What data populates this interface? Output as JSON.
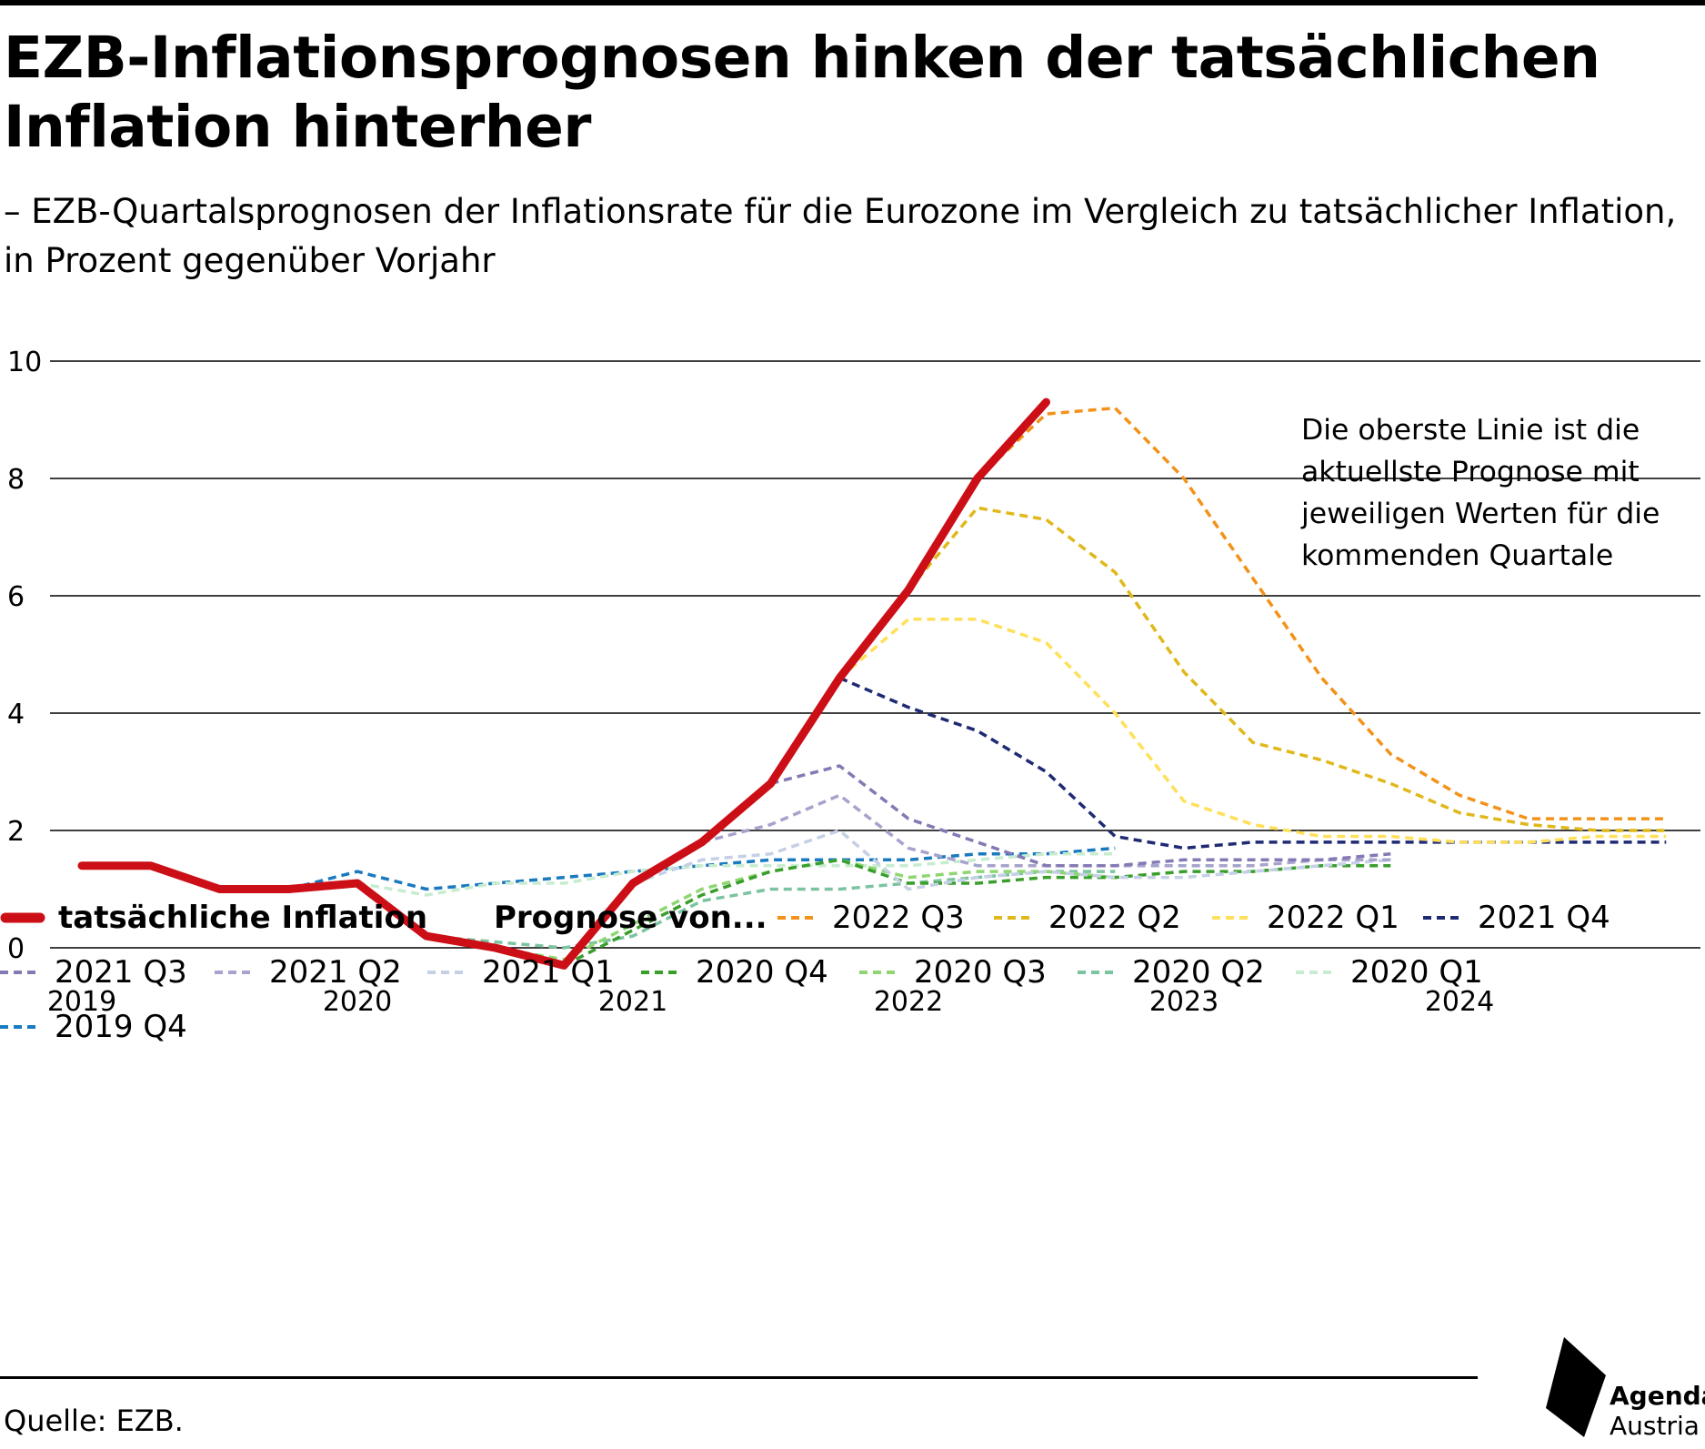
{
  "header": {
    "title": "EZB-Inflationsprognosen hinken der tatsächlichen Inflation hinterher",
    "subtitle": "– EZB-Quartalsprognosen der Inflationsrate für die Eurozone im Vergleich zu tatsächlicher Inflation, in Prozent gegenüber Vorjahr"
  },
  "annotation": {
    "lines": [
      "Die oberste Linie ist die",
      "aktuellste Prognose mit",
      "jeweiligen Werten für die",
      "kommenden Quartale"
    ]
  },
  "footer": {
    "source": "Quelle: EZB.",
    "logo_line1": "Agenda",
    "logo_line2": "Austria"
  },
  "chart_data": {
    "type": "line",
    "title": "EZB-Inflationsprognosen hinken der tatsächlichen Inflation hinterher",
    "xlabel": "",
    "ylabel": "",
    "xlim": [
      2019,
      2024.875
    ],
    "ylim": [
      0,
      10
    ],
    "grid": true,
    "y_ticks": [
      0,
      2,
      4,
      6,
      8,
      10
    ],
    "x_ticks": [
      2019,
      2020,
      2021,
      2022,
      2023,
      2024
    ],
    "x_tick_labels": [
      "2019",
      "2020",
      "2021",
      "2022",
      "2023",
      "2024"
    ],
    "legend_position": "bottom",
    "legend_heading": "Prognose von...",
    "actual": {
      "name": "tatsächliche Inflation",
      "color": "#cc0e16",
      "points": [
        [
          2019.0,
          1.4
        ],
        [
          2019.25,
          1.4
        ],
        [
          2019.5,
          1.0
        ],
        [
          2019.75,
          1.0
        ],
        [
          2020.0,
          1.1
        ],
        [
          2020.25,
          0.2
        ],
        [
          2020.5,
          0.0
        ],
        [
          2020.75,
          -0.3
        ],
        [
          2021.0,
          1.1
        ],
        [
          2021.25,
          1.8
        ],
        [
          2021.5,
          2.8
        ],
        [
          2021.75,
          4.6
        ],
        [
          2022.0,
          6.1
        ],
        [
          2022.25,
          8.0
        ],
        [
          2022.5,
          9.3
        ]
      ]
    },
    "series": [
      {
        "name": "2019 Q4",
        "color": "#1a7abf",
        "points": [
          [
            2019.75,
            1.0
          ],
          [
            2020.0,
            1.3
          ],
          [
            2020.25,
            1.0
          ],
          [
            2020.5,
            1.1
          ],
          [
            2020.75,
            1.2
          ],
          [
            2021.0,
            1.3
          ],
          [
            2021.25,
            1.4
          ],
          [
            2021.5,
            1.5
          ],
          [
            2021.75,
            1.5
          ],
          [
            2022.0,
            1.5
          ],
          [
            2022.25,
            1.6
          ],
          [
            2022.5,
            1.6
          ],
          [
            2022.75,
            1.7
          ]
        ]
      },
      {
        "name": "2020 Q1",
        "color": "#c7ecd0",
        "points": [
          [
            2020.0,
            1.1
          ],
          [
            2020.25,
            0.9
          ],
          [
            2020.5,
            1.1
          ],
          [
            2020.75,
            1.1
          ],
          [
            2021.0,
            1.3
          ],
          [
            2021.25,
            1.4
          ],
          [
            2021.5,
            1.4
          ],
          [
            2021.75,
            1.4
          ],
          [
            2022.0,
            1.4
          ],
          [
            2022.25,
            1.5
          ],
          [
            2022.5,
            1.6
          ],
          [
            2022.75,
            1.6
          ]
        ]
      },
      {
        "name": "2020 Q2",
        "color": "#7cc3a0",
        "points": [
          [
            2020.25,
            0.2
          ],
          [
            2020.5,
            0.1
          ],
          [
            2020.75,
            0.0
          ],
          [
            2021.0,
            0.2
          ],
          [
            2021.25,
            0.8
          ],
          [
            2021.5,
            1.0
          ],
          [
            2021.75,
            1.0
          ],
          [
            2022.0,
            1.1
          ],
          [
            2022.25,
            1.2
          ],
          [
            2022.5,
            1.3
          ],
          [
            2022.75,
            1.3
          ]
        ]
      },
      {
        "name": "2020 Q3",
        "color": "#8fd673",
        "points": [
          [
            2020.5,
            0.0
          ],
          [
            2020.75,
            -0.2
          ],
          [
            2021.0,
            0.4
          ],
          [
            2021.25,
            1.0
          ],
          [
            2021.5,
            1.3
          ],
          [
            2021.75,
            1.5
          ],
          [
            2022.0,
            1.2
          ],
          [
            2022.25,
            1.3
          ],
          [
            2022.5,
            1.3
          ],
          [
            2022.75,
            1.2
          ]
        ]
      },
      {
        "name": "2020 Q4",
        "color": "#3a9e2c",
        "points": [
          [
            2020.75,
            -0.3
          ],
          [
            2021.0,
            0.3
          ],
          [
            2021.25,
            0.9
          ],
          [
            2021.5,
            1.3
          ],
          [
            2021.75,
            1.5
          ],
          [
            2022.0,
            1.1
          ],
          [
            2022.25,
            1.1
          ],
          [
            2022.5,
            1.2
          ],
          [
            2022.75,
            1.2
          ],
          [
            2023.0,
            1.3
          ],
          [
            2023.25,
            1.3
          ],
          [
            2023.5,
            1.4
          ],
          [
            2023.75,
            1.4
          ]
        ]
      },
      {
        "name": "2021 Q1",
        "color": "#c5d0e6",
        "points": [
          [
            2021.0,
            1.1
          ],
          [
            2021.25,
            1.5
          ],
          [
            2021.5,
            1.6
          ],
          [
            2021.75,
            2.0
          ],
          [
            2022.0,
            1.0
          ],
          [
            2022.25,
            1.2
          ],
          [
            2022.5,
            1.3
          ],
          [
            2022.75,
            1.2
          ],
          [
            2023.0,
            1.2
          ],
          [
            2023.25,
            1.3
          ],
          [
            2023.5,
            1.4
          ],
          [
            2023.75,
            1.5
          ]
        ]
      },
      {
        "name": "2021 Q2",
        "color": "#a6a3cc",
        "points": [
          [
            2021.25,
            1.8
          ],
          [
            2021.5,
            2.1
          ],
          [
            2021.75,
            2.6
          ],
          [
            2022.0,
            1.7
          ],
          [
            2022.25,
            1.4
          ],
          [
            2022.5,
            1.4
          ],
          [
            2022.75,
            1.4
          ],
          [
            2023.0,
            1.4
          ],
          [
            2023.25,
            1.4
          ],
          [
            2023.5,
            1.5
          ],
          [
            2023.75,
            1.5
          ]
        ]
      },
      {
        "name": "2021 Q3",
        "color": "#8479b4",
        "points": [
          [
            2021.5,
            2.8
          ],
          [
            2021.75,
            3.1
          ],
          [
            2022.0,
            2.2
          ],
          [
            2022.25,
            1.8
          ],
          [
            2022.5,
            1.4
          ],
          [
            2022.75,
            1.4
          ],
          [
            2023.0,
            1.5
          ],
          [
            2023.25,
            1.5
          ],
          [
            2023.5,
            1.5
          ],
          [
            2023.75,
            1.6
          ]
        ]
      },
      {
        "name": "2021 Q4",
        "color": "#1f2a74",
        "points": [
          [
            2021.75,
            4.6
          ],
          [
            2022.0,
            4.1
          ],
          [
            2022.25,
            3.7
          ],
          [
            2022.5,
            3.0
          ],
          [
            2022.75,
            1.9
          ],
          [
            2023.0,
            1.7
          ],
          [
            2023.25,
            1.8
          ],
          [
            2023.5,
            1.8
          ],
          [
            2023.75,
            1.8
          ],
          [
            2024.0,
            1.8
          ],
          [
            2024.25,
            1.8
          ],
          [
            2024.5,
            1.8
          ],
          [
            2024.75,
            1.8
          ]
        ]
      },
      {
        "name": "2022 Q1",
        "color": "#ffe05a",
        "points": [
          [
            2021.75,
            4.6
          ],
          [
            2022.0,
            5.6
          ],
          [
            2022.25,
            5.6
          ],
          [
            2022.5,
            5.2
          ],
          [
            2022.75,
            4.0
          ],
          [
            2023.0,
            2.5
          ],
          [
            2023.25,
            2.1
          ],
          [
            2023.5,
            1.9
          ],
          [
            2023.75,
            1.9
          ],
          [
            2024.0,
            1.8
          ],
          [
            2024.25,
            1.8
          ],
          [
            2024.5,
            1.9
          ],
          [
            2024.75,
            1.9
          ]
        ]
      },
      {
        "name": "2022 Q2",
        "color": "#e0b81a",
        "points": [
          [
            2022.0,
            6.1
          ],
          [
            2022.25,
            7.5
          ],
          [
            2022.5,
            7.3
          ],
          [
            2022.75,
            6.4
          ],
          [
            2023.0,
            4.7
          ],
          [
            2023.25,
            3.5
          ],
          [
            2023.5,
            3.2
          ],
          [
            2023.75,
            2.8
          ],
          [
            2024.0,
            2.3
          ],
          [
            2024.25,
            2.1
          ],
          [
            2024.5,
            2.0
          ],
          [
            2024.75,
            2.0
          ]
        ]
      },
      {
        "name": "2022 Q3",
        "color": "#f39219",
        "points": [
          [
            2022.25,
            8.0
          ],
          [
            2022.5,
            9.1
          ],
          [
            2022.75,
            9.2
          ],
          [
            2023.0,
            8.0
          ],
          [
            2023.25,
            6.3
          ],
          [
            2023.5,
            4.6
          ],
          [
            2023.75,
            3.3
          ],
          [
            2024.0,
            2.6
          ],
          [
            2024.25,
            2.2
          ],
          [
            2024.5,
            2.2
          ],
          [
            2024.75,
            2.2
          ]
        ]
      }
    ],
    "legend_order": [
      "actual",
      "heading",
      "2022 Q3",
      "2022 Q2",
      "2022 Q1",
      "2021 Q4",
      "2021 Q3",
      "2021 Q2",
      "2021 Q1",
      "2020 Q4",
      "2020 Q3",
      "2020 Q2",
      "2020 Q1",
      "2019 Q4"
    ]
  }
}
